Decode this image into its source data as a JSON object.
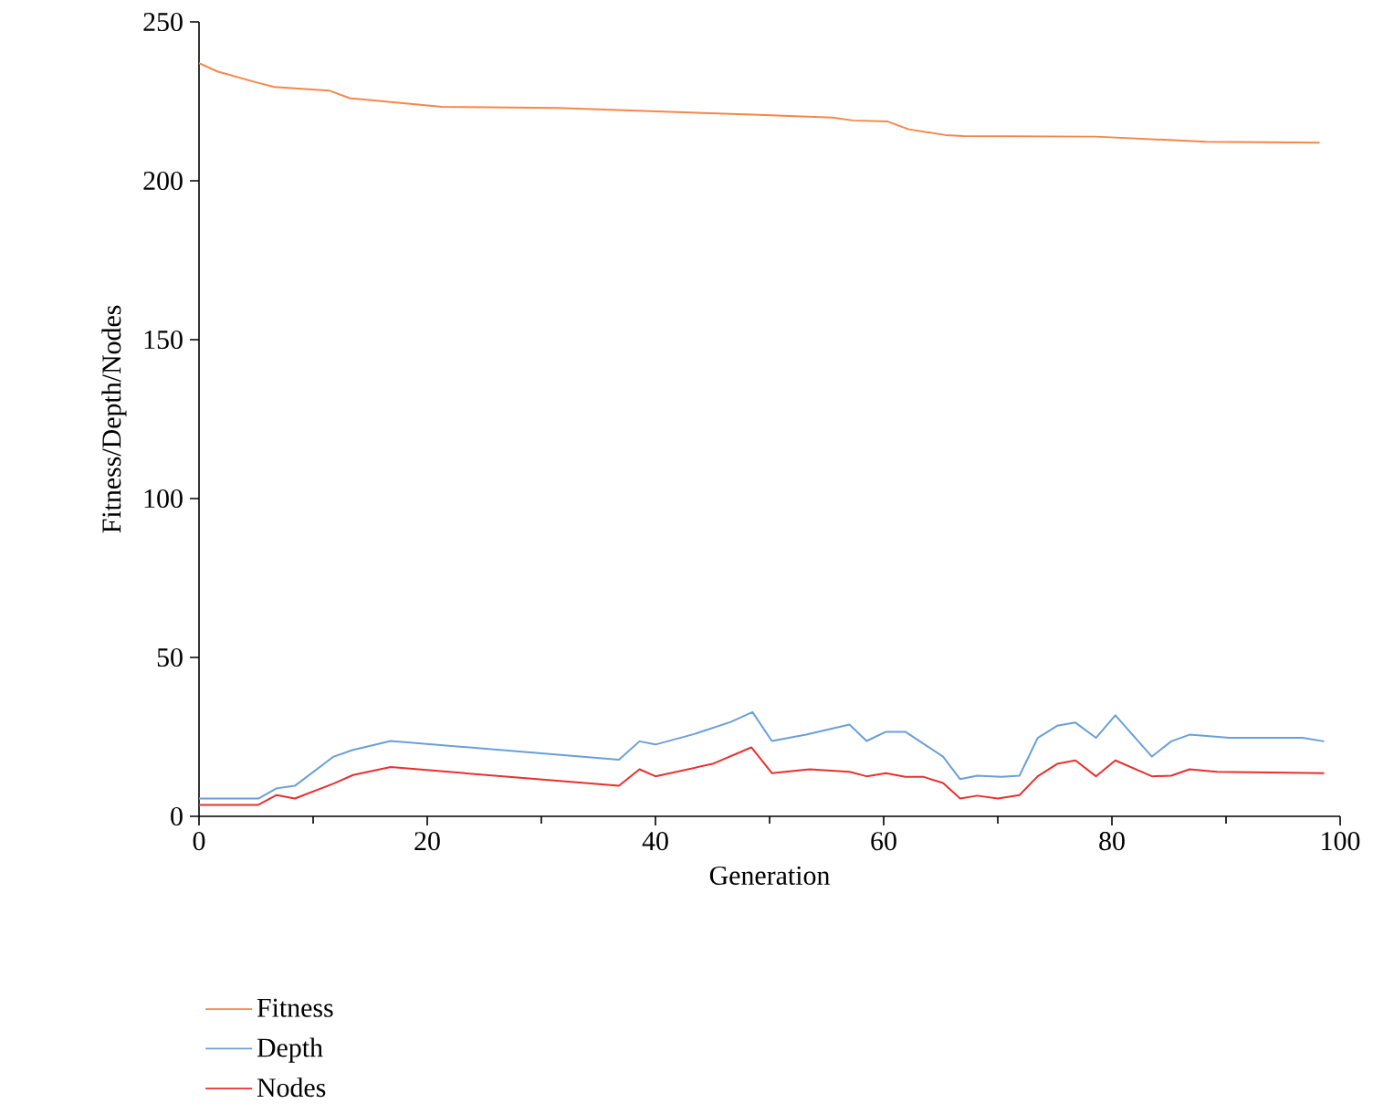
{
  "chart_data": {
    "type": "line",
    "xlabel": "Generation",
    "ylabel": "Fitness/Depth/Nodes",
    "xlim": [
      0,
      100
    ],
    "ylim": [
      0,
      250
    ],
    "xticks": [
      0,
      20,
      40,
      60,
      80,
      100
    ],
    "yticks": [
      0,
      50,
      100,
      150,
      200,
      250
    ],
    "grid": false,
    "legend": "bottom",
    "marker": "none",
    "line_style": "solid",
    "series": [
      {
        "name": "Fitness",
        "color": "#f4874b",
        "x": [
          0,
          1.6,
          5,
          6.6,
          11.4,
          13.2,
          21.3,
          31.5,
          48.5,
          55.5,
          57.3,
          60.3,
          62.2,
          65.4,
          67,
          78.6,
          88.2,
          98.2
        ],
        "values": [
          237,
          234.4,
          231,
          229.5,
          228.4,
          226,
          223.3,
          222.9,
          220.8,
          219.9,
          219,
          218.7,
          216.2,
          214.4,
          214.1,
          213.9,
          212.3,
          212
        ]
      },
      {
        "name": "Depth",
        "color": "#6a9fd8",
        "x": [
          0,
          5.2,
          6.8,
          8.4,
          11.8,
          13.5,
          16.8,
          36.8,
          38.6,
          40,
          43.4,
          46.6,
          48.5,
          50.2,
          53.2,
          57,
          58.5,
          60.2,
          61.9,
          65.2,
          66.7,
          68.2,
          70.3,
          71.9,
          73.5,
          75.2,
          76.8,
          78.6,
          80.3,
          83.5,
          85.2,
          86.8,
          90.3,
          96.7,
          98.6
        ],
        "values": [
          5.6,
          5.6,
          8.8,
          9.6,
          18.8,
          20.9,
          23.7,
          17.8,
          23.6,
          22.6,
          25.9,
          29.7,
          32.8,
          23.7,
          25.7,
          28.9,
          23.7,
          26.6,
          26.6,
          18.8,
          11.7,
          12.8,
          12.4,
          12.8,
          24.7,
          28.5,
          29.5,
          24.7,
          31.8,
          18.8,
          23.6,
          25.7,
          24.7,
          24.7,
          23.6
        ]
      },
      {
        "name": "Nodes",
        "color": "#e8302e",
        "x": [
          0,
          5.2,
          6.8,
          8.4,
          11.8,
          13.5,
          16.8,
          36.8,
          38.6,
          40,
          45,
          48.4,
          50.2,
          53.5,
          57,
          58.5,
          60.2,
          61.9,
          63.5,
          65.2,
          66.7,
          68.2,
          70,
          71.9,
          73.5,
          75.2,
          76.8,
          78.6,
          80.3,
          83.5,
          85.2,
          86.8,
          89.2,
          98.6
        ],
        "values": [
          3.6,
          3.6,
          6.7,
          5.6,
          10.3,
          13,
          15.5,
          9.6,
          14.8,
          12.6,
          16.5,
          21.7,
          13.6,
          14.8,
          14,
          12.6,
          13.6,
          12.4,
          12.4,
          10.5,
          5.6,
          6.5,
          5.6,
          6.7,
          12.6,
          16.5,
          17.6,
          12.6,
          17.6,
          12.6,
          12.8,
          14.8,
          14,
          13.6
        ]
      }
    ]
  }
}
